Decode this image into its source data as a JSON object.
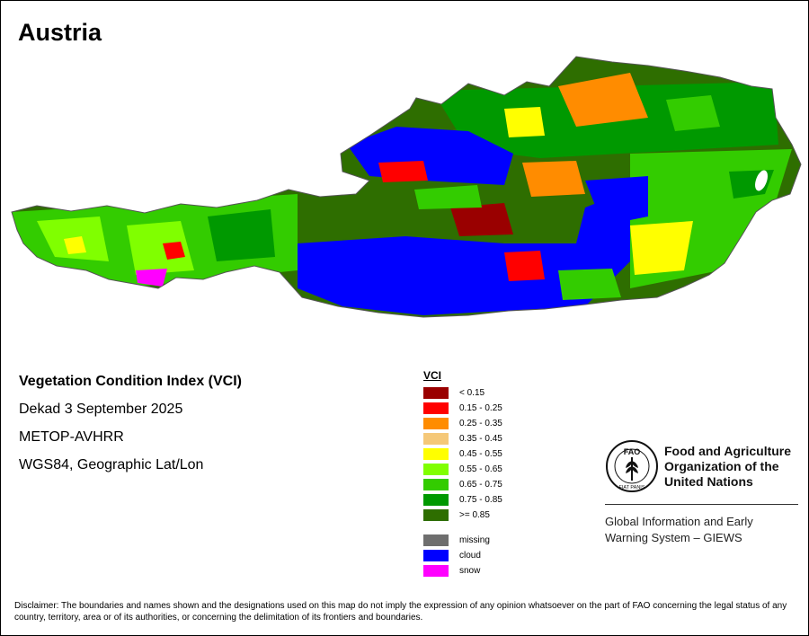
{
  "title": "Austria",
  "info": {
    "line1": "Vegetation Condition Index (VCI)",
    "line2": "Dekad 3 September 2025",
    "line3": "METOP-AVHRR",
    "line4": "WGS84, Geographic Lat/Lon"
  },
  "legend": {
    "title": "VCI",
    "items": [
      {
        "label": "< 0.15",
        "color": "#9a0000"
      },
      {
        "label": "0.15 - 0.25",
        "color": "#ff0000"
      },
      {
        "label": "0.25 - 0.35",
        "color": "#ff8c00"
      },
      {
        "label": "0.35 - 0.45",
        "color": "#f5c878"
      },
      {
        "label": "0.45 - 0.55",
        "color": "#ffff00"
      },
      {
        "label": "0.55 - 0.65",
        "color": "#80ff00"
      },
      {
        "label": "0.65 - 0.75",
        "color": "#33cc00"
      },
      {
        "label": "0.75 - 0.85",
        "color": "#009900"
      },
      {
        "label": ">= 0.85",
        "color": "#2e6e00"
      }
    ],
    "extra": [
      {
        "label": "missing",
        "color": "#6e6e6e"
      },
      {
        "label": "cloud",
        "color": "#0000ff"
      },
      {
        "label": "snow",
        "color": "#ff00ff"
      }
    ]
  },
  "fao": {
    "emblem_text": "FIAT PANIS",
    "emblem_letters": "FAO",
    "name": "Food and Agriculture Organization of the United Nations",
    "giews": "Global Information and Early Warning System – GIEWS"
  },
  "disclaimer": "Disclaimer: The boundaries and names shown and the designations used on this map do not imply the expression of any opinion whatsoever on the part of FAO concerning the legal status of any country, territory, area or of its authorities, or concerning the delimitation of its frontiers and boundaries."
}
